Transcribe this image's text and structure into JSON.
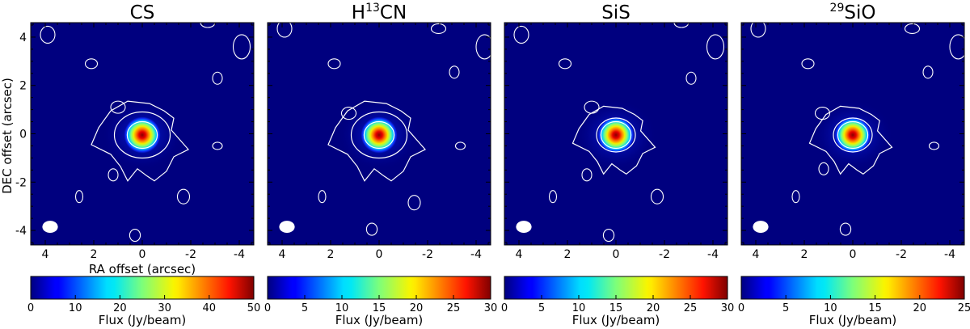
{
  "figure": {
    "ylabel": "DEC offset (arcsec)",
    "xlabel": "RA offset (arcsec)"
  },
  "chart_data": [
    {
      "type": "heatmap",
      "title": "CS",
      "title_parts": [
        {
          "text": "CS",
          "sup": false
        }
      ],
      "x_ticks": [
        4,
        2,
        0,
        -2,
        -4
      ],
      "y_ticks": [
        4,
        2,
        0,
        -2,
        -4
      ],
      "xlim": [
        4.6,
        -4.6
      ],
      "ylim": [
        -4.6,
        4.6
      ],
      "peak": {
        "x": 0.0,
        "y": -0.05,
        "value": 50
      },
      "colorbar": {
        "label": "Flux (Jy/beam)",
        "range": [
          0,
          50
        ],
        "ticks": [
          0,
          10,
          20,
          30,
          40,
          50
        ],
        "colormap": "jet"
      },
      "beam": "white-ellipse"
    },
    {
      "type": "heatmap",
      "title": "H13CN",
      "title_parts": [
        {
          "text": "H",
          "sup": false
        },
        {
          "text": "13",
          "sup": true
        },
        {
          "text": "CN",
          "sup": false
        }
      ],
      "x_ticks": [
        4,
        2,
        0,
        -2,
        -4
      ],
      "y_ticks": [
        4,
        2,
        0,
        -2,
        -4
      ],
      "xlim": [
        4.6,
        -4.6
      ],
      "ylim": [
        -4.6,
        4.6
      ],
      "peak": {
        "x": 0.0,
        "y": -0.05,
        "value": 30
      },
      "colorbar": {
        "label": "Flux (Jy/beam)",
        "range": [
          0,
          30
        ],
        "ticks": [
          0,
          5,
          10,
          15,
          20,
          25,
          30
        ],
        "colormap": "jet"
      },
      "beam": "white-ellipse"
    },
    {
      "type": "heatmap",
      "title": "SiS",
      "title_parts": [
        {
          "text": "SiS",
          "sup": false
        }
      ],
      "x_ticks": [
        4,
        2,
        0,
        -2,
        -4
      ],
      "y_ticks": [
        4,
        2,
        0,
        -2,
        -4
      ],
      "xlim": [
        4.6,
        -4.6
      ],
      "ylim": [
        -4.6,
        4.6
      ],
      "peak": {
        "x": 0.0,
        "y": -0.05,
        "value": 30
      },
      "colorbar": {
        "label": "Flux (Jy/beam)",
        "range": [
          0,
          30
        ],
        "ticks": [
          0,
          5,
          10,
          15,
          20,
          25,
          30
        ],
        "colormap": "jet"
      },
      "beam": "white-ellipse"
    },
    {
      "type": "heatmap",
      "title": "29SiO",
      "title_parts": [
        {
          "text": "29",
          "sup": true
        },
        {
          "text": "SiO",
          "sup": false
        }
      ],
      "x_ticks": [
        4,
        2,
        0,
        -2,
        -4
      ],
      "y_ticks": [
        4,
        2,
        0,
        -2,
        -4
      ],
      "xlim": [
        4.6,
        -4.6
      ],
      "ylim": [
        -4.6,
        4.6
      ],
      "peak": {
        "x": 0.0,
        "y": -0.05,
        "value": 25
      },
      "colorbar": {
        "label": "Flux (Jy/beam)",
        "range": [
          0,
          25
        ],
        "ticks": [
          0,
          5,
          10,
          15,
          20,
          25
        ],
        "colormap": "jet"
      },
      "beam": "white-ellipse"
    }
  ],
  "colors": {
    "background": "#00007f",
    "contour": "#ffffff",
    "axis": "#000000"
  }
}
